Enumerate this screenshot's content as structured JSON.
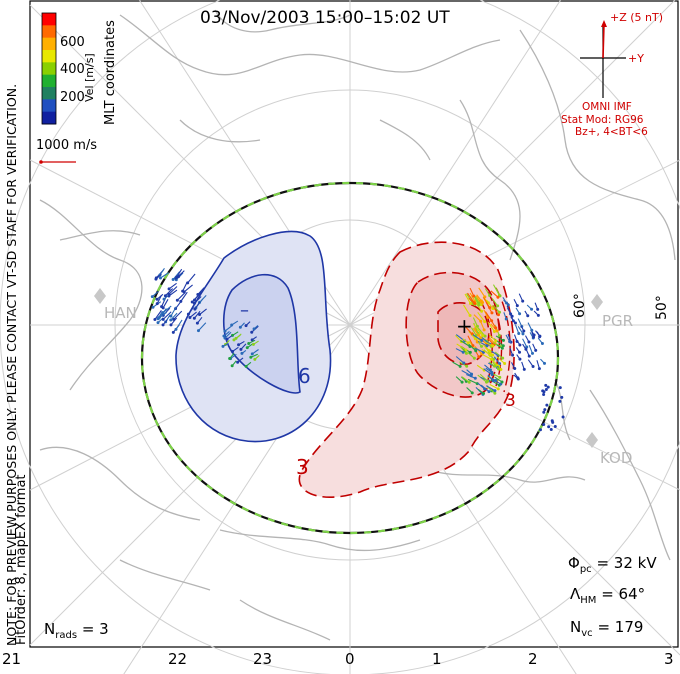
{
  "title": "03/Nov/2003 15:00–15:02 UT",
  "colorbar": {
    "label": "Vel [m/s]",
    "ticks": [
      "600",
      "400",
      "200"
    ],
    "colors": [
      "#ff0000",
      "#ff6a00",
      "#ffb000",
      "#e8e800",
      "#8ad000",
      "#20b030",
      "#208060",
      "#2050c0",
      "#1020a0"
    ]
  },
  "coordinates_label": "MLT coordinates",
  "scale_vector": {
    "label": "1000 m/s"
  },
  "imf": {
    "z_label": "+Z (5 nT)",
    "y_label": "+Y",
    "source": "OMNI IMF",
    "model": "Stat Mod: RG96",
    "conditions": "Bz+, 4<BT<6"
  },
  "notice": "NOTE: FOR PREVIEW PURPOSES ONLY. PLEASE CONTACT VT-SD STAFF FOR VERIFICATION.",
  "fit_order": "FitOrder: 8, mapEX format",
  "contour_labels": {
    "neg_min": "–",
    "neg": "6",
    "pos_max": "+",
    "pos1": "3",
    "pos2": "3"
  },
  "sites": [
    "HAN",
    "PGR",
    "KOD"
  ],
  "latitude_labels": [
    "60°",
    "50°"
  ],
  "stats": {
    "phi_pc_symbol": "Φ",
    "phi_pc_sub": "pc",
    "phi_pc_value": "= 32 kV",
    "lambda_hm_symbol": "Λ",
    "lambda_hm_sub": "HM",
    "lambda_hm_value": "= 64°",
    "n_vc_symbol": "N",
    "n_vc_sub": "vc",
    "n_vc_value": "= 179",
    "n_rads_symbol": "N",
    "n_rads_sub": "rads",
    "n_rads_value": "= 3"
  },
  "mlt_axis": [
    "21",
    "22",
    "23",
    "0",
    "1",
    "2",
    "3"
  ]
}
